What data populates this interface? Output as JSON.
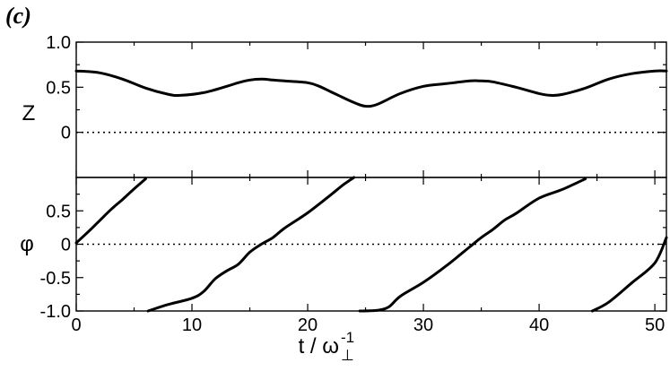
{
  "panel_label": "(c)",
  "x_axis": {
    "label": "t / ω",
    "label_sup": "-1",
    "label_sub": "⊥"
  },
  "chart_data": [
    {
      "type": "line",
      "ylabel": "Z",
      "xlim": [
        0,
        51
      ],
      "ylim": [
        -0.5,
        1.0
      ],
      "x_ticks": [
        0,
        10,
        20,
        30,
        40,
        50
      ],
      "y_ticks": [
        0,
        0.5,
        1.0
      ],
      "y_tick_labels": [
        "0",
        "0.5",
        "1.0"
      ],
      "reference_line": {
        "y": 0,
        "style": "dotted"
      },
      "grid": false,
      "series": [
        {
          "x": [
            0,
            2,
            4,
            6,
            8,
            9,
            11,
            13,
            14,
            15,
            16,
            17,
            18,
            20,
            21,
            22,
            24,
            25,
            26,
            28,
            30,
            32,
            34,
            35,
            36,
            38,
            40,
            41,
            42,
            44,
            46,
            48,
            50,
            51
          ],
          "y": [
            0.68,
            0.66,
            0.59,
            0.49,
            0.42,
            0.41,
            0.44,
            0.51,
            0.55,
            0.58,
            0.59,
            0.58,
            0.57,
            0.55,
            0.51,
            0.45,
            0.33,
            0.29,
            0.31,
            0.43,
            0.51,
            0.54,
            0.57,
            0.57,
            0.56,
            0.5,
            0.43,
            0.41,
            0.42,
            0.49,
            0.59,
            0.65,
            0.68,
            0.68
          ]
        }
      ]
    },
    {
      "type": "line",
      "ylabel": "φ",
      "xlim": [
        0,
        51
      ],
      "ylim": [
        -1.0,
        1.0
      ],
      "x_ticks": [
        0,
        10,
        20,
        30,
        40,
        50
      ],
      "x_tick_labels": [
        "0",
        "10",
        "20",
        "30",
        "40",
        "50"
      ],
      "y_ticks": [
        -1.0,
        -0.5,
        0,
        0.5
      ],
      "y_tick_labels": [
        "-1.0",
        "-0.5",
        "0",
        "0.5"
      ],
      "reference_line": {
        "y": 0,
        "style": "dotted"
      },
      "grid": false,
      "series": [
        {
          "x": [
            0,
            1,
            2,
            3,
            4,
            5,
            6
          ],
          "y": [
            0.02,
            0.18,
            0.35,
            0.52,
            0.67,
            0.83,
            0.98
          ]
        },
        {
          "x": [
            6.2,
            8,
            10,
            11,
            12,
            13,
            14,
            15,
            16,
            17,
            18,
            20,
            22,
            23,
            24
          ],
          "y": [
            -1.0,
            -0.9,
            -0.81,
            -0.71,
            -0.52,
            -0.4,
            -0.3,
            -0.12,
            0.0,
            0.1,
            0.24,
            0.47,
            0.74,
            0.88,
            1.0
          ]
        },
        {
          "x": [
            24.5,
            26,
            27,
            28,
            30,
            32,
            34,
            35,
            36,
            37,
            38,
            40,
            42,
            44
          ],
          "y": [
            -1.0,
            -0.99,
            -0.94,
            -0.78,
            -0.57,
            -0.32,
            -0.04,
            0.1,
            0.22,
            0.36,
            0.46,
            0.69,
            0.82,
            0.98
          ]
        },
        {
          "x": [
            44.6,
            46,
            48,
            50,
            51
          ],
          "y": [
            -1.0,
            -0.87,
            -0.58,
            -0.28,
            0.1
          ]
        }
      ]
    }
  ]
}
